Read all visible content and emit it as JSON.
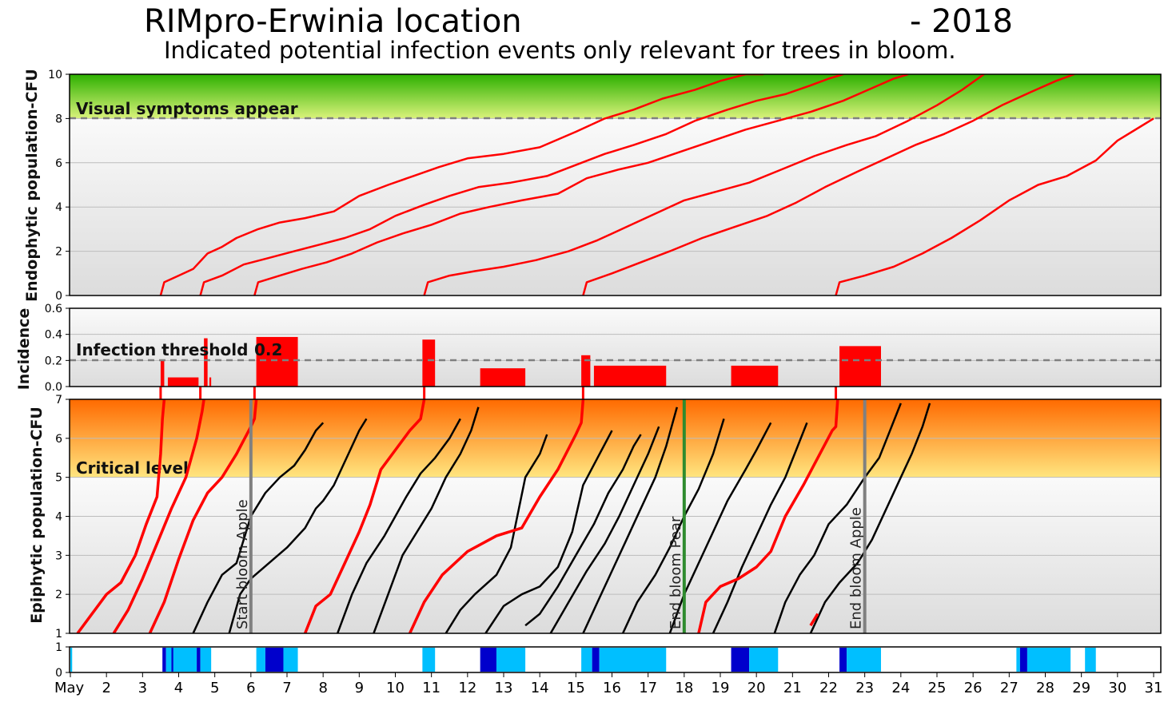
{
  "header": {
    "title": "RIMpro-Erwinia location",
    "year": "- 2018",
    "subtitle": "Indicated potential infection events only relevant for trees in bloom."
  },
  "colors": {
    "infection_red": "#ff0000",
    "population_black": "#000000",
    "symptom_zone_top": "#2db000",
    "symptom_zone_bottom": "#d9f27a",
    "critical_zone_top": "#ff6a00",
    "critical_zone_bottom": "#ffe680",
    "bloom_line_apple": "#808080",
    "bloom_line_pear": "#2e8b2e",
    "bar_light_blue": "#00bfff",
    "bar_dark_blue": "#0000cc"
  },
  "x_axis": {
    "labels": [
      "May",
      "2",
      "3",
      "4",
      "5",
      "6",
      "7",
      "8",
      "9",
      "10",
      "11",
      "12",
      "13",
      "14",
      "15",
      "16",
      "17",
      "18",
      "19",
      "20",
      "21",
      "22",
      "23",
      "24",
      "25",
      "26",
      "27",
      "28",
      "29",
      "30",
      "31"
    ],
    "domain": [
      1,
      31
    ]
  },
  "chart_data": [
    {
      "type": "line",
      "ylabel": "Endophytic population-CFU",
      "ylim": [
        0,
        10
      ],
      "yticks": [
        "0",
        "2",
        "4",
        "6",
        "8",
        "10"
      ],
      "zone": {
        "label": "Visual symptoms appear",
        "from": 8,
        "to": 10
      },
      "threshold": 8,
      "series": [
        {
          "x": [
            3.5,
            3.6,
            4.0,
            4.4,
            4.8,
            5.2,
            5.6,
            6.2,
            6.8,
            7.5,
            8.3,
            9.0,
            9.8,
            10.5,
            11.2,
            12.0,
            13.0,
            14.0,
            15.0,
            15.8,
            16.6,
            17.4,
            18.3,
            19.0,
            19.7,
            20.2
          ],
          "y": [
            0,
            0.6,
            0.9,
            1.2,
            1.9,
            2.2,
            2.6,
            3.0,
            3.3,
            3.5,
            3.8,
            4.5,
            5.0,
            5.4,
            5.8,
            6.2,
            6.4,
            6.7,
            7.4,
            8.0,
            8.4,
            8.9,
            9.3,
            9.7,
            10.0,
            10.0
          ]
        },
        {
          "x": [
            4.6,
            4.7,
            5.2,
            5.8,
            6.5,
            7.2,
            7.9,
            8.6,
            9.3,
            10.0,
            10.8,
            11.5,
            12.3,
            13.2,
            14.2,
            15.0,
            15.8,
            16.6,
            17.5,
            18.3,
            19.2,
            20.0,
            20.8,
            21.5,
            22.0,
            22.4
          ],
          "y": [
            0,
            0.6,
            0.9,
            1.4,
            1.7,
            2.0,
            2.3,
            2.6,
            3.0,
            3.6,
            4.1,
            4.5,
            4.9,
            5.1,
            5.4,
            5.9,
            6.4,
            6.8,
            7.3,
            7.9,
            8.4,
            8.8,
            9.1,
            9.5,
            9.8,
            10.0
          ]
        },
        {
          "x": [
            6.1,
            6.2,
            6.8,
            7.4,
            8.1,
            8.8,
            9.5,
            10.2,
            11.0,
            11.8,
            12.6,
            13.5,
            14.5,
            15.3,
            16.2,
            17.0,
            17.9,
            18.8,
            19.7,
            20.6,
            21.5,
            22.4,
            23.1,
            23.8,
            24.2
          ],
          "y": [
            0,
            0.6,
            0.9,
            1.2,
            1.5,
            1.9,
            2.4,
            2.8,
            3.2,
            3.7,
            4.0,
            4.3,
            4.6,
            5.3,
            5.7,
            6.0,
            6.5,
            7.0,
            7.5,
            7.9,
            8.3,
            8.8,
            9.3,
            9.8,
            10.0
          ]
        },
        {
          "x": [
            10.8,
            10.9,
            11.5,
            12.2,
            13.0,
            13.9,
            14.8,
            15.6,
            16.4,
            17.2,
            18.0,
            18.9,
            19.8,
            20.7,
            21.6,
            22.5,
            23.3,
            24.2,
            25.0,
            25.7,
            26.3
          ],
          "y": [
            0,
            0.6,
            0.9,
            1.1,
            1.3,
            1.6,
            2.0,
            2.5,
            3.1,
            3.7,
            4.3,
            4.7,
            5.1,
            5.7,
            6.3,
            6.8,
            7.2,
            7.9,
            8.6,
            9.3,
            10.0
          ]
        },
        {
          "x": [
            15.2,
            15.3,
            16.0,
            16.8,
            17.6,
            18.5,
            19.4,
            20.3,
            21.1,
            21.9,
            22.8,
            23.6,
            24.4,
            25.2,
            26.0,
            26.8,
            27.6,
            28.3,
            28.8
          ],
          "y": [
            0,
            0.6,
            1.0,
            1.5,
            2.0,
            2.6,
            3.1,
            3.6,
            4.2,
            4.9,
            5.6,
            6.2,
            6.8,
            7.3,
            7.9,
            8.6,
            9.2,
            9.7,
            10.0
          ]
        },
        {
          "x": [
            22.2,
            22.3,
            23.0,
            23.8,
            24.6,
            25.4,
            26.2,
            27.0,
            27.8,
            28.6,
            29.4,
            30.0,
            30.6,
            31.0
          ],
          "y": [
            0,
            0.6,
            0.9,
            1.3,
            1.9,
            2.6,
            3.4,
            4.3,
            5.0,
            5.4,
            6.1,
            7.0,
            7.6,
            8.0
          ]
        }
      ]
    },
    {
      "type": "bar",
      "ylabel": "Incidence",
      "ylim": [
        0,
        0.6
      ],
      "yticks": [
        "0.0",
        "0.2",
        "0.4",
        "0.6"
      ],
      "threshold": {
        "label": "Infection threshold",
        "value": 0.2,
        "value_label": "0.2"
      },
      "bars": [
        {
          "start": 3.5,
          "end": 3.6,
          "value": 0.2
        },
        {
          "start": 3.7,
          "end": 4.55,
          "value": 0.07
        },
        {
          "start": 4.7,
          "end": 4.8,
          "value": 0.37
        },
        {
          "start": 4.85,
          "end": 4.9,
          "value": 0.07
        },
        {
          "start": 6.15,
          "end": 7.3,
          "value": 0.38
        },
        {
          "start": 10.75,
          "end": 11.1,
          "value": 0.36
        },
        {
          "start": 12.35,
          "end": 13.6,
          "value": 0.14
        },
        {
          "start": 15.15,
          "end": 15.4,
          "value": 0.24
        },
        {
          "start": 15.5,
          "end": 17.5,
          "value": 0.16
        },
        {
          "start": 19.3,
          "end": 20.6,
          "value": 0.16
        },
        {
          "start": 22.3,
          "end": 23.45,
          "value": 0.31
        }
      ]
    },
    {
      "type": "line",
      "ylabel": "Epiphytic population-CFU",
      "ylim": [
        1,
        7
      ],
      "yticks": [
        "1",
        "2",
        "3",
        "4",
        "5",
        "6",
        "7"
      ],
      "zone": {
        "label": "Critical level",
        "from": 5,
        "to": 7
      },
      "red_series": [
        {
          "x": [
            1.2,
            1.6,
            2.0,
            2.4,
            2.8,
            3.1,
            3.4,
            3.5,
            3.55,
            3.6
          ],
          "y": [
            1.0,
            1.5,
            2.0,
            2.3,
            3.0,
            3.8,
            4.5,
            5.6,
            6.5,
            7.0
          ]
        },
        {
          "x": [
            2.2,
            2.6,
            3.0,
            3.4,
            3.8,
            4.2,
            4.5,
            4.65,
            4.7
          ],
          "y": [
            1.0,
            1.6,
            2.4,
            3.3,
            4.2,
            5.0,
            6.0,
            6.7,
            7.0
          ]
        },
        {
          "x": [
            3.2,
            3.6,
            4.0,
            4.4,
            4.8,
            5.2,
            5.6,
            6.0,
            6.1,
            6.15
          ],
          "y": [
            1.0,
            1.8,
            2.9,
            3.9,
            4.6,
            5.0,
            5.6,
            6.3,
            6.5,
            7.0
          ]
        },
        {
          "x": [
            7.5,
            7.8,
            8.2,
            8.6,
            9.0,
            9.3,
            9.6,
            10.0,
            10.4,
            10.7,
            10.8
          ],
          "y": [
            1.0,
            1.7,
            2.0,
            2.8,
            3.6,
            4.3,
            5.2,
            5.7,
            6.2,
            6.5,
            7.0
          ]
        },
        {
          "x": [
            10.4,
            10.8,
            11.3,
            12.0,
            12.8,
            13.5,
            14.0,
            14.5,
            15.0,
            15.15,
            15.2
          ],
          "y": [
            1.0,
            1.8,
            2.5,
            3.1,
            3.5,
            3.7,
            4.5,
            5.2,
            6.1,
            6.4,
            7.0
          ]
        },
        {
          "x": [
            18.4,
            18.6,
            19.0,
            19.5,
            20.0,
            20.4,
            20.8,
            21.3,
            21.7,
            22.1,
            22.2,
            22.25
          ],
          "y": [
            1.0,
            1.8,
            2.2,
            2.4,
            2.7,
            3.1,
            4.0,
            4.8,
            5.5,
            6.2,
            6.3,
            7.0
          ]
        },
        {
          "x": [
            21.5,
            21.7
          ],
          "y": [
            1.2,
            1.5
          ]
        }
      ],
      "black_series": [
        {
          "x": [
            4.4,
            4.8,
            5.2,
            5.6,
            6.0,
            6.4,
            6.8,
            7.2,
            7.5,
            7.8,
            8.0
          ],
          "y": [
            1.0,
            1.8,
            2.5,
            2.8,
            4.0,
            4.6,
            5.0,
            5.3,
            5.7,
            6.2,
            6.4
          ]
        },
        {
          "x": [
            5.4,
            5.7,
            6.0,
            6.5,
            7.0,
            7.5,
            7.8,
            8.0,
            8.3,
            8.7,
            9.0,
            9.2
          ],
          "y": [
            1.0,
            2.0,
            2.4,
            2.8,
            3.2,
            3.7,
            4.2,
            4.4,
            4.8,
            5.6,
            6.2,
            6.5
          ]
        },
        {
          "x": [
            8.4,
            8.8,
            9.2,
            9.7,
            10.0,
            10.3,
            10.7,
            11.1,
            11.5,
            11.8
          ],
          "y": [
            1.0,
            2.0,
            2.8,
            3.5,
            4.0,
            4.5,
            5.1,
            5.5,
            6.0,
            6.5
          ]
        },
        {
          "x": [
            9.4,
            9.8,
            10.2,
            10.6,
            11.0,
            11.4,
            11.8,
            12.1,
            12.3
          ],
          "y": [
            1.0,
            2.0,
            3.0,
            3.6,
            4.2,
            5.0,
            5.6,
            6.2,
            6.8
          ]
        },
        {
          "x": [
            11.4,
            11.8,
            12.2,
            12.8,
            13.2,
            13.6,
            14.0,
            14.2
          ],
          "y": [
            1.0,
            1.6,
            2.0,
            2.5,
            3.2,
            5.0,
            5.6,
            6.1
          ]
        },
        {
          "x": [
            12.5,
            13.0,
            13.5,
            14.0,
            14.5,
            14.9,
            15.2,
            15.6,
            16.0
          ],
          "y": [
            1.0,
            1.7,
            2.0,
            2.2,
            2.7,
            3.6,
            4.8,
            5.5,
            6.2
          ]
        },
        {
          "x": [
            13.6,
            14.0,
            14.5,
            15.0,
            15.5,
            15.9,
            16.3,
            16.6,
            16.8
          ],
          "y": [
            1.2,
            1.5,
            2.2,
            3.0,
            3.8,
            4.6,
            5.2,
            5.8,
            6.1
          ]
        },
        {
          "x": [
            14.3,
            14.8,
            15.3,
            15.8,
            16.2,
            16.6,
            17.0,
            17.3
          ],
          "y": [
            1.0,
            1.8,
            2.6,
            3.3,
            4.0,
            4.8,
            5.6,
            6.3
          ]
        },
        {
          "x": [
            15.2,
            15.6,
            16.0,
            16.4,
            16.8,
            17.2,
            17.5,
            17.8
          ],
          "y": [
            1.0,
            1.8,
            2.6,
            3.4,
            4.2,
            5.0,
            5.8,
            6.8
          ]
        },
        {
          "x": [
            16.3,
            16.7,
            17.2,
            17.6,
            18.0,
            18.4,
            18.8,
            19.1
          ],
          "y": [
            1.0,
            1.8,
            2.5,
            3.2,
            4.0,
            4.7,
            5.6,
            6.5
          ]
        },
        {
          "x": [
            17.6,
            18.0,
            18.4,
            18.8,
            19.2,
            19.7,
            20.0,
            20.4
          ],
          "y": [
            1.0,
            2.0,
            2.8,
            3.6,
            4.4,
            5.2,
            5.7,
            6.4
          ]
        },
        {
          "x": [
            18.8,
            19.2,
            19.6,
            20.0,
            20.4,
            20.8,
            21.1,
            21.4
          ],
          "y": [
            1.0,
            1.8,
            2.7,
            3.5,
            4.3,
            5.0,
            5.7,
            6.4
          ]
        },
        {
          "x": [
            20.5,
            20.8,
            21.2,
            21.6,
            22.0,
            22.5,
            23.0,
            23.4,
            23.7,
            24.0
          ],
          "y": [
            1.0,
            1.8,
            2.5,
            3.0,
            3.8,
            4.3,
            5.0,
            5.5,
            6.2,
            6.9
          ]
        },
        {
          "x": [
            21.5,
            21.9,
            22.3,
            22.8,
            23.2,
            23.6,
            24.0,
            24.3,
            24.6,
            24.8
          ],
          "y": [
            1.0,
            1.8,
            2.3,
            2.8,
            3.4,
            4.2,
            5.0,
            5.6,
            6.3,
            6.9
          ]
        }
      ],
      "event_lines": [
        {
          "x": 6.0,
          "label": "Start bloom Apple",
          "kind": "apple"
        },
        {
          "x": 18.0,
          "label": "End bloom Pear",
          "kind": "pear"
        },
        {
          "x": 23.0,
          "label": "End bloom Apple",
          "kind": "apple"
        }
      ]
    },
    {
      "type": "heatmap",
      "ylim": [
        0,
        1
      ],
      "yticks": [
        "0",
        "1"
      ],
      "segments": [
        {
          "start": 1.0,
          "end": 1.05,
          "level": "light"
        },
        {
          "start": 3.55,
          "end": 3.65,
          "level": "dark"
        },
        {
          "start": 3.65,
          "end": 4.5,
          "level": "light"
        },
        {
          "start": 3.8,
          "end": 3.85,
          "level": "dark"
        },
        {
          "start": 4.5,
          "end": 4.6,
          "level": "dark"
        },
        {
          "start": 4.6,
          "end": 4.9,
          "level": "light"
        },
        {
          "start": 6.15,
          "end": 6.4,
          "level": "light"
        },
        {
          "start": 6.4,
          "end": 6.9,
          "level": "dark"
        },
        {
          "start": 6.9,
          "end": 7.3,
          "level": "light"
        },
        {
          "start": 10.75,
          "end": 11.1,
          "level": "light"
        },
        {
          "start": 12.35,
          "end": 12.8,
          "level": "dark"
        },
        {
          "start": 12.8,
          "end": 13.6,
          "level": "light"
        },
        {
          "start": 15.15,
          "end": 15.45,
          "level": "light"
        },
        {
          "start": 15.45,
          "end": 15.65,
          "level": "dark"
        },
        {
          "start": 15.65,
          "end": 17.5,
          "level": "light"
        },
        {
          "start": 19.3,
          "end": 19.8,
          "level": "dark"
        },
        {
          "start": 19.8,
          "end": 20.6,
          "level": "light"
        },
        {
          "start": 22.3,
          "end": 22.5,
          "level": "dark"
        },
        {
          "start": 22.5,
          "end": 23.45,
          "level": "light"
        },
        {
          "start": 27.2,
          "end": 27.3,
          "level": "light"
        },
        {
          "start": 27.3,
          "end": 27.5,
          "level": "dark"
        },
        {
          "start": 27.5,
          "end": 28.7,
          "level": "light"
        },
        {
          "start": 29.1,
          "end": 29.4,
          "level": "light"
        }
      ]
    }
  ]
}
